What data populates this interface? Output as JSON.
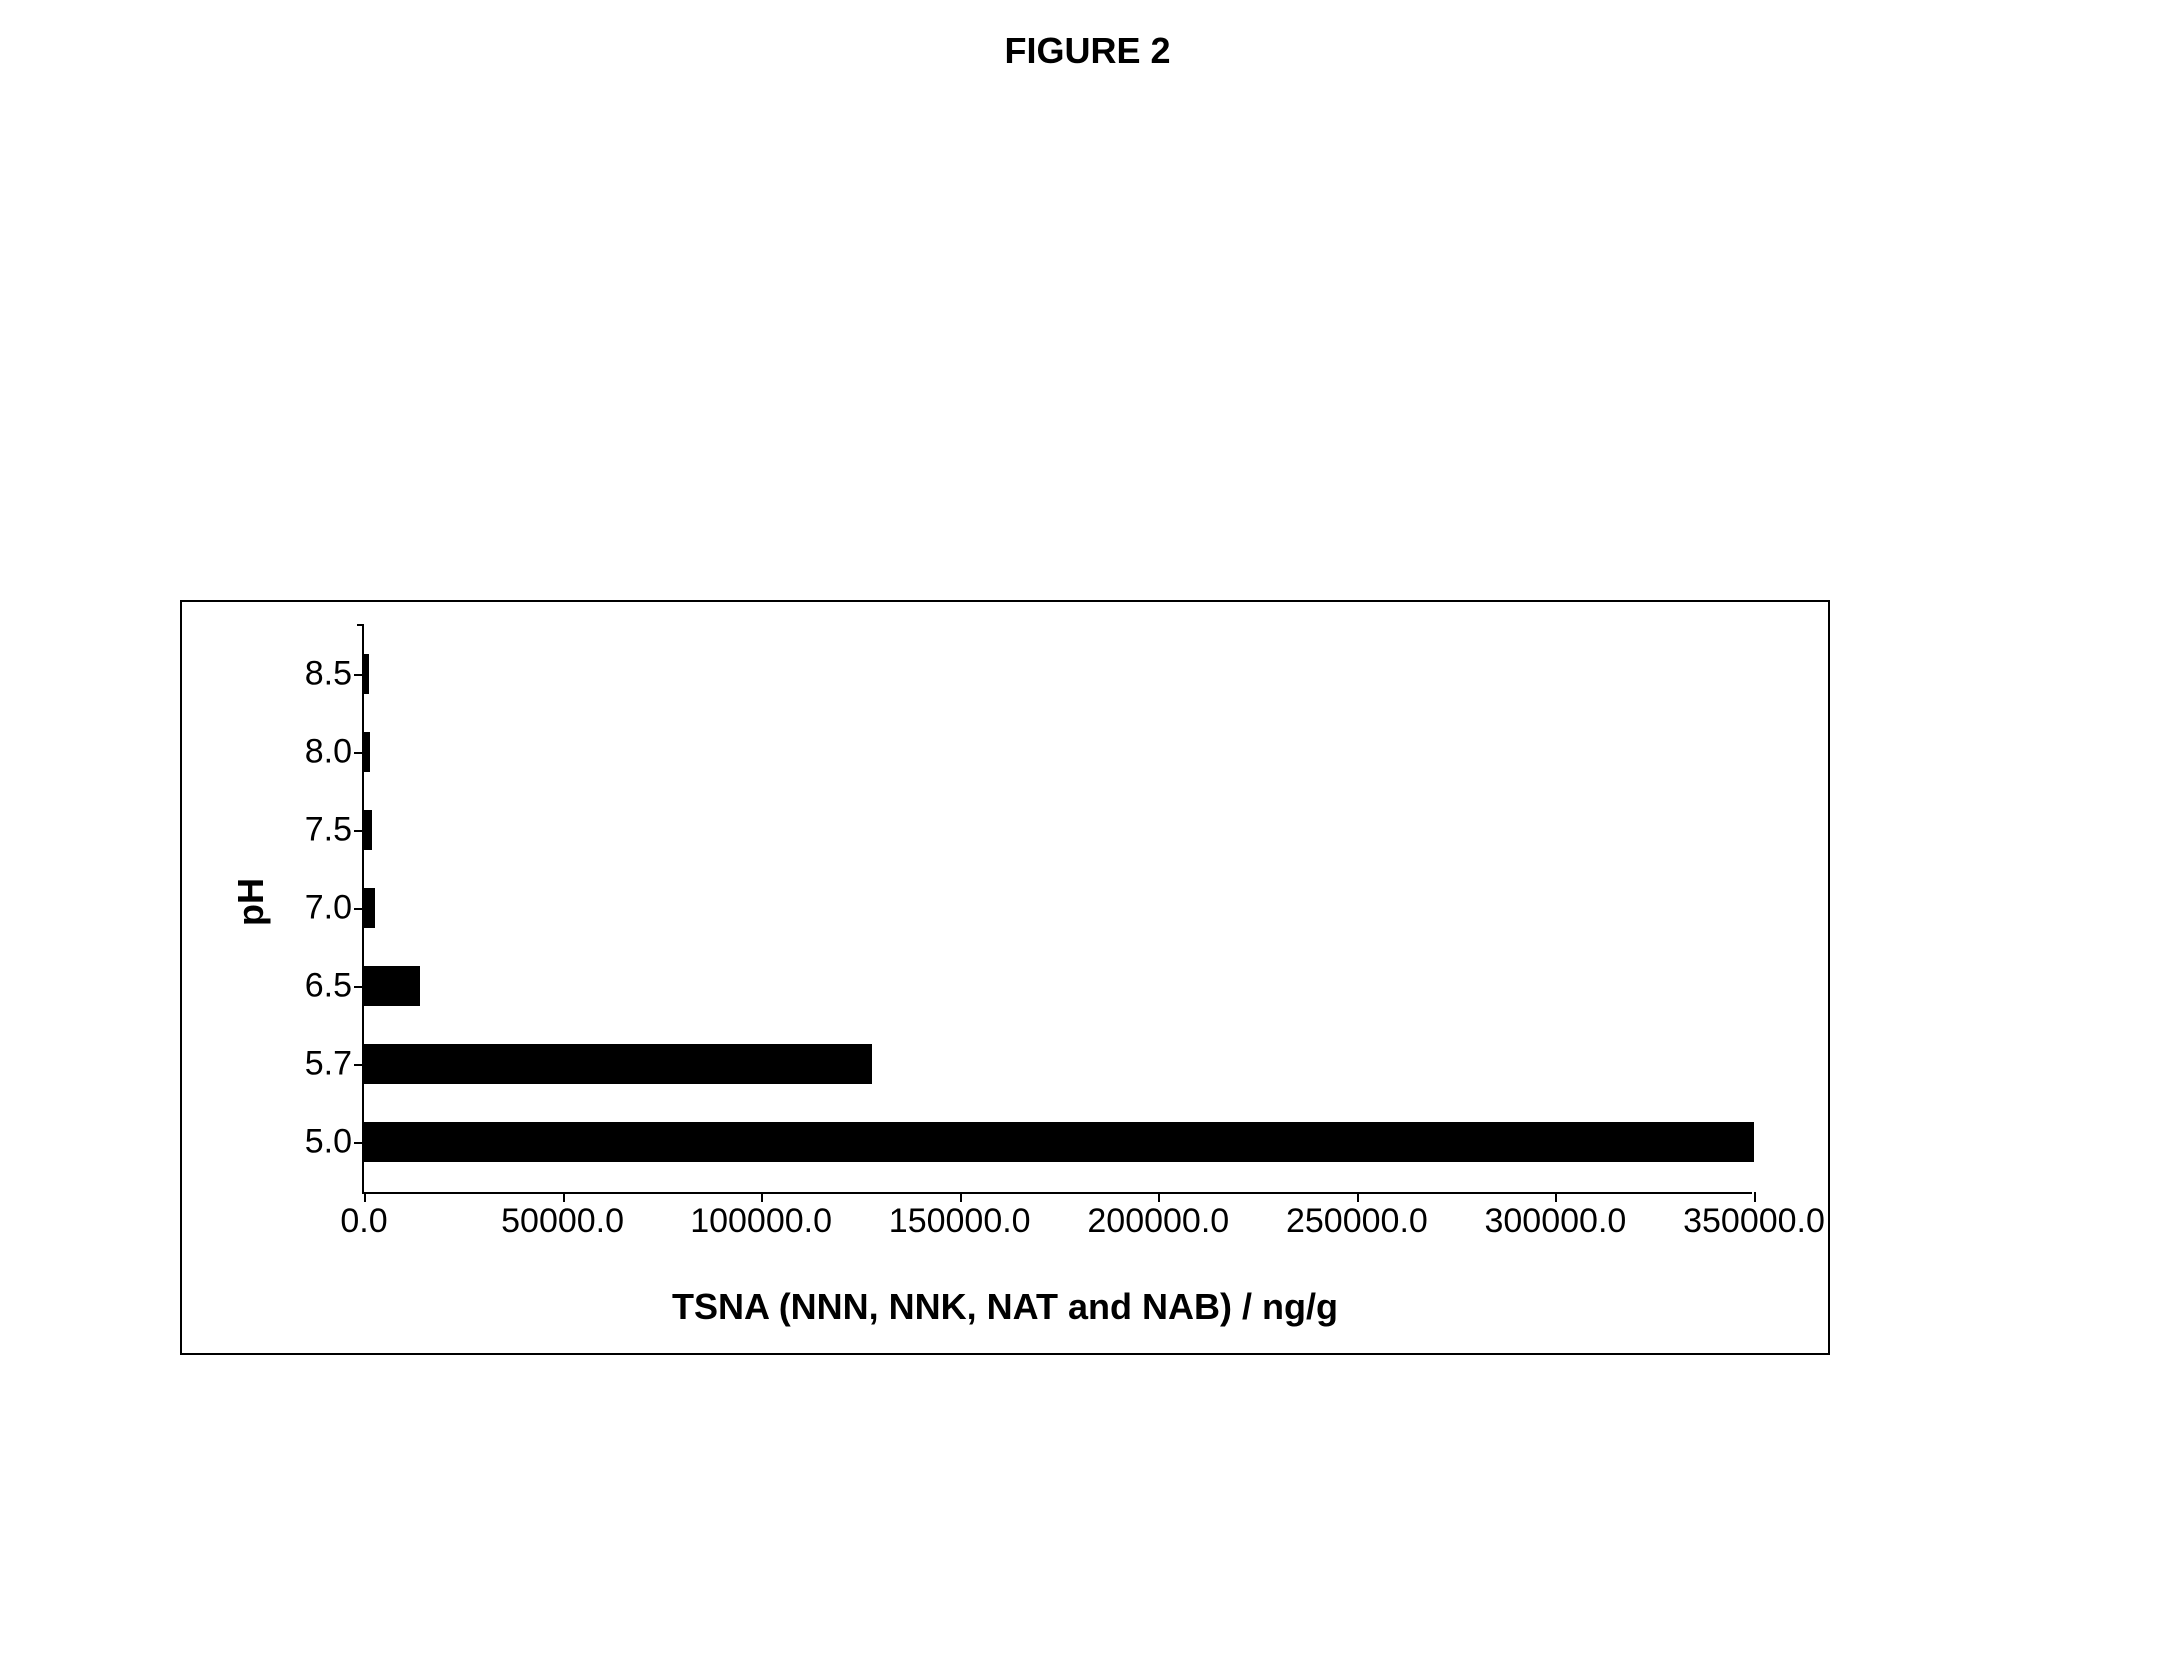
{
  "figure_title": "FIGURE 2",
  "chart": {
    "type": "bar-horizontal",
    "y_axis_title": "pH",
    "x_axis_title": "TSNA (NNN, NNK, NAT and NAB) / ng/g",
    "categories": [
      "8.5",
      "8.0",
      "7.5",
      "7.0",
      "6.5",
      "5.7",
      "5.0"
    ],
    "values": [
      1200,
      1600,
      2000,
      2800,
      14000,
      128000,
      350000
    ],
    "bar_color": "#000000",
    "x_ticks": [
      "0.0",
      "50000.0",
      "100000.0",
      "150000.0",
      "200000.0",
      "250000.0",
      "300000.0",
      "350000.0"
    ],
    "x_min": 0,
    "x_max": 350000,
    "background_color": "#ffffff",
    "border_color": "#000000",
    "title_fontsize": 36,
    "label_fontsize": 34,
    "axis_title_fontsize": 36
  }
}
